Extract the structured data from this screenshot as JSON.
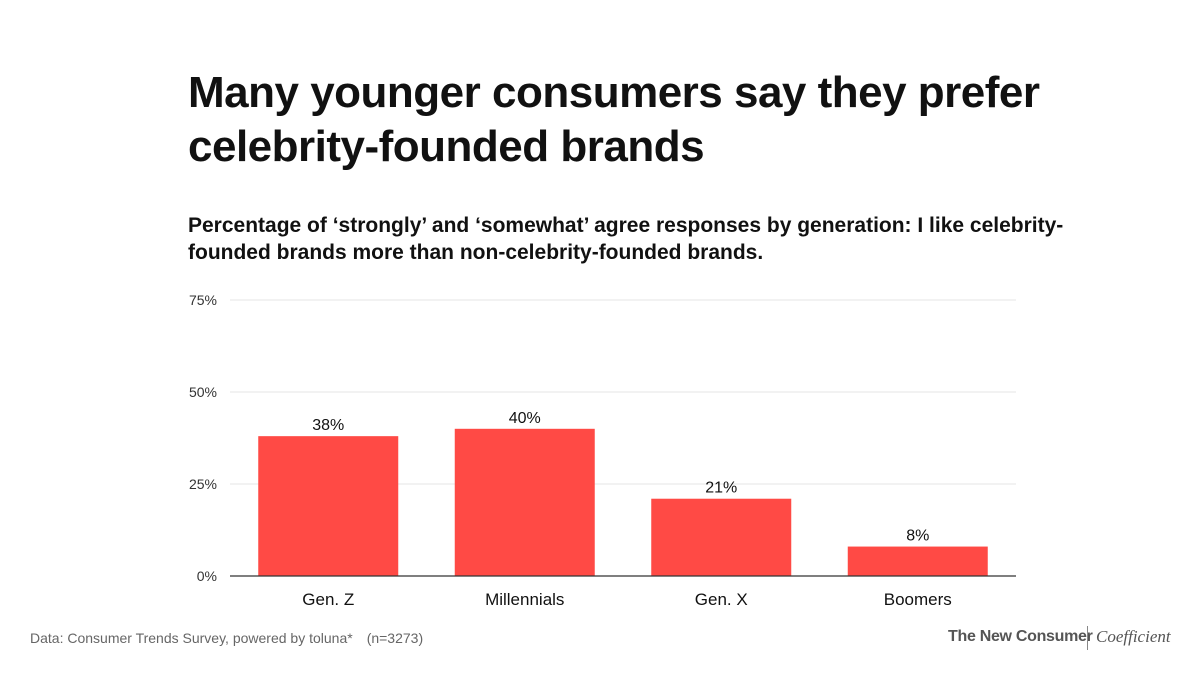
{
  "title": "Many younger consumers say they prefer celebrity-founded brands",
  "subtitle": "Percentage of ‘strongly’ and ‘somewhat’ agree responses by generation: I like celebrity-founded brands more than non-celebrity-founded brands.",
  "footer": {
    "source": "Data: Consumer Trends Survey, powered by toluna*",
    "sample": "(n=3273)",
    "brand_primary": "The New Consumer",
    "brand_secondary": "Coefficient"
  },
  "colors": {
    "bar": "#ff4a45",
    "grid": "#e6e6e6",
    "axis": "#333333",
    "text": "#111111"
  },
  "chart_data": {
    "type": "bar",
    "categories": [
      "Gen. Z",
      "Millennials",
      "Gen. X",
      "Boomers"
    ],
    "values": [
      38,
      40,
      21,
      8
    ],
    "value_labels": [
      "38%",
      "40%",
      "21%",
      "8%"
    ],
    "y_ticks": [
      0,
      25,
      50,
      75
    ],
    "y_tick_labels": [
      "0%",
      "25%",
      "50%",
      "75%"
    ],
    "ylim": [
      0,
      75
    ],
    "grid": true
  }
}
